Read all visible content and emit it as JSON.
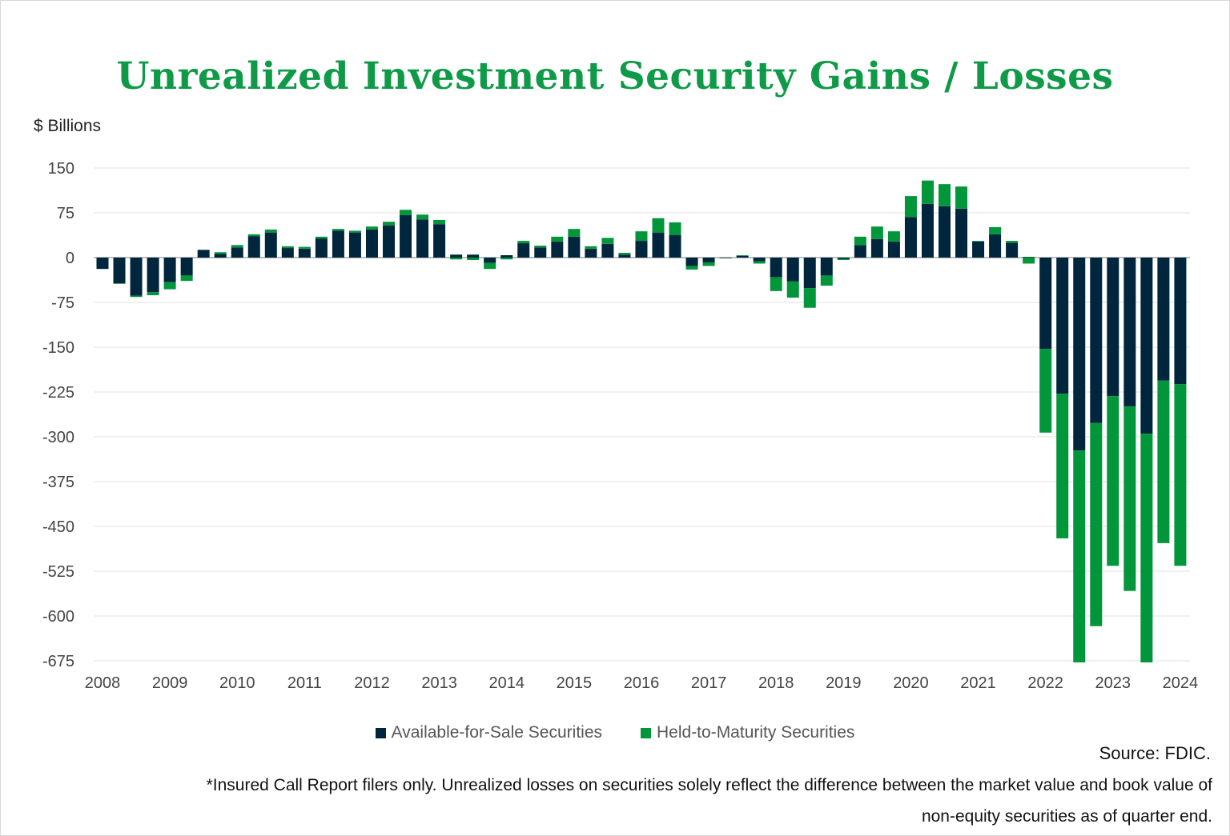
{
  "chart_data": {
    "type": "bar",
    "stacked": true,
    "title": "Unrealized Investment Security Gains / Losses",
    "ylabel": "$ Billions",
    "xlabel": "",
    "ylim": [
      -675,
      150
    ],
    "yticks": [
      150,
      75,
      0,
      -75,
      -150,
      -225,
      -300,
      -375,
      -450,
      -525,
      -600,
      -675
    ],
    "xtick_labels": [
      "2008",
      "2009",
      "2010",
      "2011",
      "2012",
      "2013",
      "2014",
      "2015",
      "2016",
      "2017",
      "2018",
      "2019",
      "2020",
      "2021",
      "2022",
      "2023",
      "2024"
    ],
    "grid": true,
    "legend_position": "bottom",
    "categories": [
      "2008Q1",
      "2008Q2",
      "2008Q3",
      "2008Q4",
      "2009Q1",
      "2009Q2",
      "2009Q3",
      "2009Q4",
      "2010Q1",
      "2010Q2",
      "2010Q3",
      "2010Q4",
      "2011Q1",
      "2011Q2",
      "2011Q3",
      "2011Q4",
      "2012Q1",
      "2012Q2",
      "2012Q3",
      "2012Q4",
      "2013Q1",
      "2013Q2",
      "2013Q3",
      "2013Q4",
      "2014Q1",
      "2014Q2",
      "2014Q3",
      "2014Q4",
      "2015Q1",
      "2015Q2",
      "2015Q3",
      "2015Q4",
      "2016Q1",
      "2016Q2",
      "2016Q3",
      "2016Q4",
      "2017Q1",
      "2017Q2",
      "2017Q3",
      "2017Q4",
      "2018Q1",
      "2018Q2",
      "2018Q3",
      "2018Q4",
      "2019Q1",
      "2019Q2",
      "2019Q3",
      "2019Q4",
      "2020Q1",
      "2020Q2",
      "2020Q3",
      "2020Q4",
      "2021Q1",
      "2021Q2",
      "2021Q3",
      "2021Q4",
      "2022Q1",
      "2022Q2",
      "2022Q3",
      "2022Q4",
      "2023Q1",
      "2023Q2",
      "2023Q3",
      "2023Q4",
      "2024Q1"
    ],
    "series": [
      {
        "name": "Available-for-Sale Securities",
        "color": "#00263e",
        "values": [
          -19,
          -43,
          -64,
          -58,
          -41,
          -30,
          13,
          6,
          17,
          36,
          42,
          16,
          15,
          32,
          45,
          42,
          47,
          54,
          71,
          64,
          56,
          5,
          5,
          -9,
          4,
          24,
          17,
          27,
          35,
          15,
          23,
          5,
          28,
          42,
          38,
          -14,
          -8,
          -1,
          3,
          -6,
          -33,
          -40,
          -51,
          -30,
          -2,
          21,
          31,
          27,
          68,
          90,
          86,
          82,
          27,
          39,
          25,
          1,
          -153,
          -228,
          -323,
          -277,
          -232,
          -249,
          -295,
          -206,
          -212
        ]
      },
      {
        "name": "Held-to-Maturity Securities",
        "color": "#009639",
        "values": [
          0,
          -1,
          -2,
          -5,
          -12,
          -9,
          0,
          3,
          4,
          3,
          5,
          3,
          3,
          3,
          3,
          3,
          5,
          6,
          9,
          8,
          7,
          -3,
          -4,
          -10,
          -3,
          4,
          3,
          8,
          13,
          4,
          10,
          3,
          16,
          24,
          21,
          -6,
          -6,
          0,
          1,
          -4,
          -23,
          -27,
          -33,
          -17,
          -2,
          14,
          21,
          17,
          35,
          39,
          37,
          37,
          1,
          12,
          3,
          -10,
          -140,
          -242,
          -355,
          -340,
          -284,
          -309,
          -383,
          -272,
          -304
        ]
      }
    ]
  },
  "source": "Source: FDIC.",
  "footnote_line1": "*Insured Call Report filers only. Unrealized losses on securities solely reflect the difference between the market value and book value of",
  "footnote_line2": "non-equity securities as of quarter end."
}
